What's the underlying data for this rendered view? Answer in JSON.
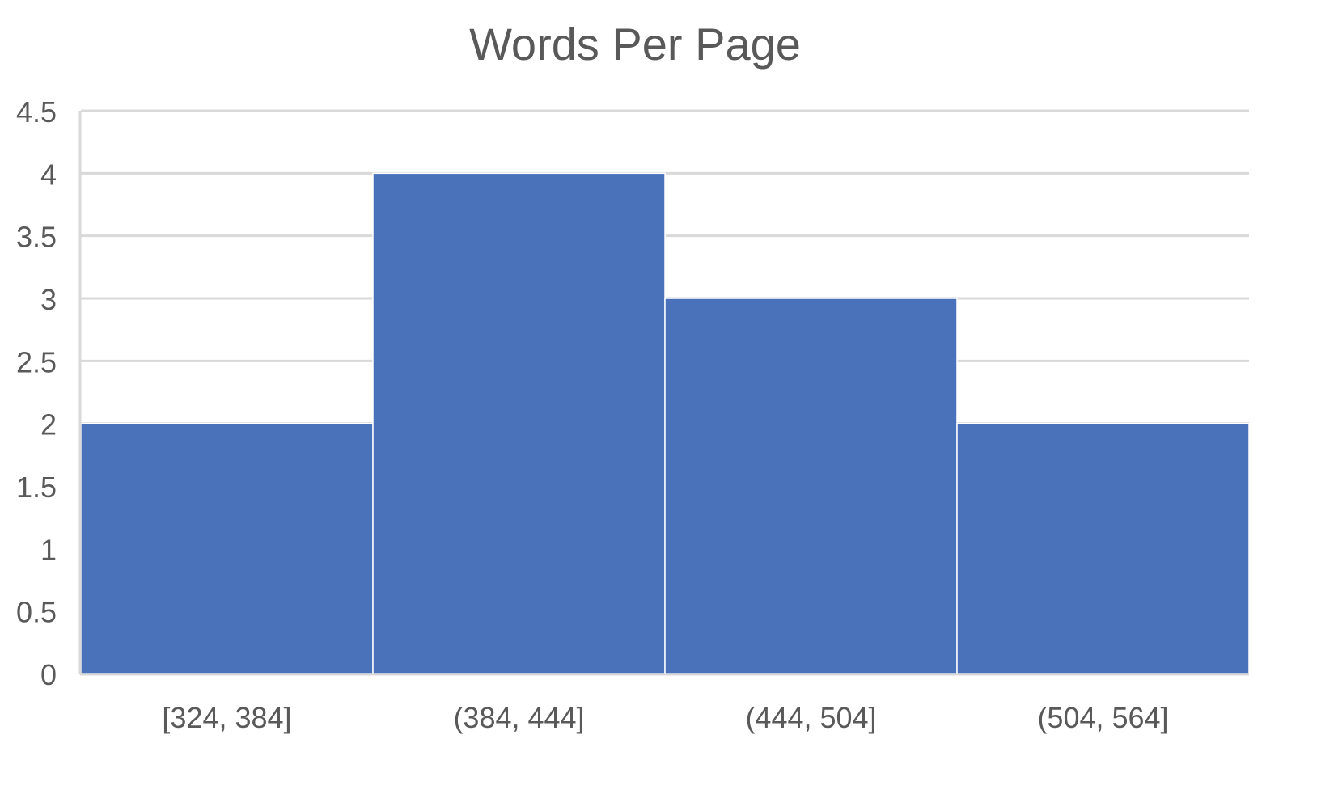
{
  "chart_data": {
    "type": "bar",
    "title": "Words Per Page",
    "categories": [
      "[324, 384]",
      "(384, 444]",
      "(444, 504]",
      "(504, 564]"
    ],
    "values": [
      2,
      4,
      3,
      2
    ],
    "ylim": [
      0,
      4.5
    ],
    "yticks": [
      0,
      0.5,
      1,
      1.5,
      2,
      2.5,
      3,
      3.5,
      4,
      4.5
    ],
    "ytick_labels": [
      "0",
      "0.5",
      "1",
      "1.5",
      "2",
      "2.5",
      "3",
      "3.5",
      "4",
      "4.5"
    ],
    "grid": true,
    "bar_color": "#4a72bb",
    "grid_color": "#d9d9d9",
    "text_color": "#595959"
  }
}
